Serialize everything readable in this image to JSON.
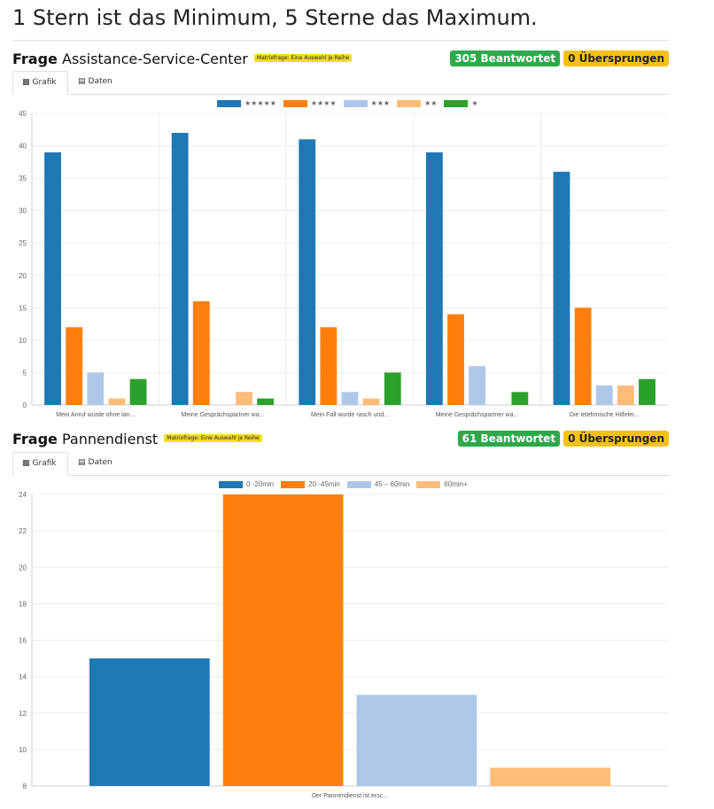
{
  "page_title": "1 Stern ist das Minimum, 5 Sterne das Maximum.",
  "questions": [
    {
      "label": "Frage",
      "name": "Assistance-Service-Center",
      "matrix_note": "Matrixfrage: Eine Auswahl je Reihe",
      "answered": "305 Beantwortet",
      "skipped": "0 Übersprungen",
      "tabs": [
        {
          "label": "Grafik",
          "icon": "bar-chart-icon"
        },
        {
          "label": "Daten",
          "icon": "table-icon"
        }
      ]
    },
    {
      "label": "Frage",
      "name": "Pannendienst",
      "matrix_note": "Matrixfrage: Eine Auswahl je Reihe",
      "answered": "61 Beantwortet",
      "skipped": "0 Übersprungen",
      "tabs": [
        {
          "label": "Grafik",
          "icon": "bar-chart-icon"
        },
        {
          "label": "Daten",
          "icon": "table-icon"
        }
      ]
    }
  ],
  "chart_data": [
    {
      "type": "bar",
      "categories": [
        "Mein Anruf wurde ohne lan...",
        "Meine Gesprächspartner wa...",
        "Mein Fall wurde rasch und...",
        "Meine Gesprächspartner wa...",
        "Die telefonische Hilfelei..."
      ],
      "series": [
        {
          "name": "★★★★★",
          "color": "#1f77b4",
          "values": [
            39,
            42,
            41,
            39,
            36
          ]
        },
        {
          "name": "★★★★",
          "color": "#ff7f0e",
          "values": [
            12,
            16,
            12,
            14,
            15
          ]
        },
        {
          "name": "★★★",
          "color": "#aec7e8",
          "values": [
            5,
            0,
            2,
            6,
            3
          ]
        },
        {
          "name": "★★",
          "color": "#ffbb78",
          "values": [
            1,
            2,
            1,
            0,
            3
          ]
        },
        {
          "name": "★",
          "color": "#2ca02c",
          "values": [
            4,
            1,
            5,
            2,
            4
          ]
        }
      ],
      "ylim": [
        0,
        45
      ],
      "yticks": [
        0,
        5,
        10,
        15,
        20,
        25,
        30,
        35,
        40,
        45
      ],
      "grid": true,
      "legend": "top-center"
    },
    {
      "type": "bar",
      "categories": [
        "Der Pannendienst ist ersc..."
      ],
      "series": [
        {
          "name": "0 -20min",
          "color": "#1f77b4",
          "values": [
            15
          ]
        },
        {
          "name": "20 -45min",
          "color": "#ff7f0e",
          "values": [
            24
          ]
        },
        {
          "name": "45 – 60min",
          "color": "#aec7e8",
          "values": [
            13
          ]
        },
        {
          "name": "60min+",
          "color": "#ffbb78",
          "values": [
            9
          ]
        }
      ],
      "ylim": [
        8,
        24
      ],
      "yticks": [
        8,
        10,
        12,
        14,
        16,
        18,
        20,
        22,
        24
      ],
      "grid": true,
      "legend": "top-center"
    }
  ]
}
